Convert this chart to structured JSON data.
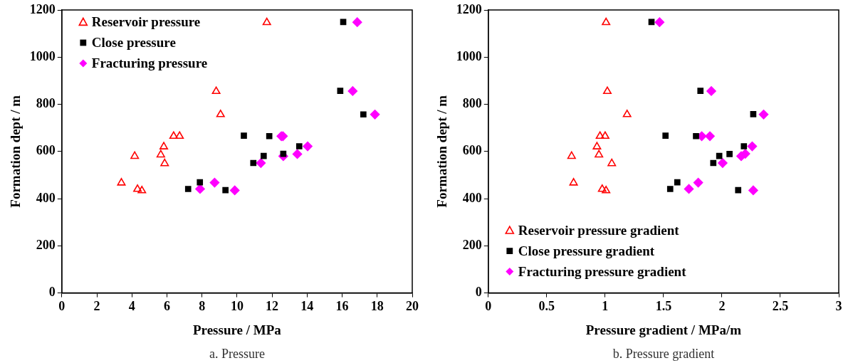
{
  "chart_data": [
    {
      "type": "scatter",
      "xlabel": "Pressure / MPa",
      "ylabel": "Formation dept / m",
      "annotations": [
        "a. Pressure"
      ],
      "xlim": [
        0,
        20
      ],
      "xticks": [
        0,
        2,
        4,
        6,
        8,
        10,
        12,
        14,
        16,
        18,
        20
      ],
      "ylim": [
        0,
        1200
      ],
      "yticks": [
        0,
        200,
        400,
        600,
        800,
        1000,
        1200
      ],
      "grid": false,
      "legend": "top left",
      "series": [
        {
          "name": "Reservoir pressure",
          "color": "#ff0000",
          "marker": "triangle",
          "x": [
            3.4,
            4.16,
            4.32,
            4.57,
            5.65,
            5.82,
            5.87,
            6.38,
            6.72,
            8.81,
            9.06,
            11.7
          ],
          "values": [
            467,
            580,
            440,
            434,
            586,
            620,
            549,
            665,
            665,
            855,
            757,
            1147
          ]
        },
        {
          "name": "Close pressure",
          "color": "#000000",
          "marker": "square",
          "x": [
            7.21,
            7.88,
            9.34,
            10.39,
            10.93,
            11.52,
            11.84,
            12.64,
            13.55,
            15.89,
            16.06,
            17.21
          ],
          "values": [
            441,
            469,
            436,
            667,
            551,
            581,
            665,
            590,
            622,
            857,
            1149,
            757
          ]
        },
        {
          "name": "Fracturing pressure",
          "color": "#ff00ff",
          "marker": "diamond",
          "x": [
            7.89,
            8.72,
            9.87,
            11.36,
            12.53,
            12.62,
            12.64,
            13.44,
            14.03,
            16.6,
            16.86,
            17.87
          ],
          "values": [
            441,
            468,
            435,
            551,
            665,
            665,
            580,
            589,
            622,
            856,
            1148,
            757
          ]
        }
      ]
    },
    {
      "type": "scatter",
      "xlabel": "Pressure gradient / MPa/m",
      "ylabel": "Formation dept / m",
      "annotations": [
        "b. Pressure gradient"
      ],
      "xlim": [
        0,
        3
      ],
      "xticks": [
        0,
        0.5,
        1,
        1.5,
        2,
        2.5,
        3
      ],
      "ylim": [
        0,
        1200
      ],
      "yticks": [
        0,
        200,
        400,
        600,
        800,
        1000,
        1200
      ],
      "grid": false,
      "legend": "bottom left",
      "series": [
        {
          "name": "Reservoir pressure gradient",
          "color": "#ff0000",
          "marker": "triangle",
          "x": [
            1.008,
            1.019,
            1.188,
            0.956,
            1.0,
            0.93,
            0.947,
            0.713,
            1.057,
            0.73,
            0.975,
            1.008
          ],
          "values": [
            1147,
            855,
            757,
            665,
            665,
            620,
            586,
            580,
            549,
            467,
            440,
            434
          ]
        },
        {
          "name": "Close pressure gradient",
          "color": "#000000",
          "marker": "square",
          "x": [
            1.397,
            1.816,
            2.268,
            1.517,
            1.778,
            2.188,
            1.977,
            2.065,
            1.926,
            1.618,
            1.557,
            2.139
          ],
          "values": [
            1149,
            857,
            758,
            667,
            665,
            622,
            581,
            589,
            551,
            469,
            441,
            436
          ]
        },
        {
          "name": "Fracturing pressure gradient",
          "color": "#ff00ff",
          "marker": "diamond",
          "x": [
            1.466,
            1.909,
            2.357,
            1.827,
            1.897,
            2.259,
            2.165,
            2.2,
            2.006,
            1.797,
            1.717,
            2.268
          ],
          "values": [
            1148,
            856,
            757,
            665,
            665,
            622,
            580,
            590,
            551,
            468,
            441,
            435
          ]
        }
      ]
    }
  ]
}
